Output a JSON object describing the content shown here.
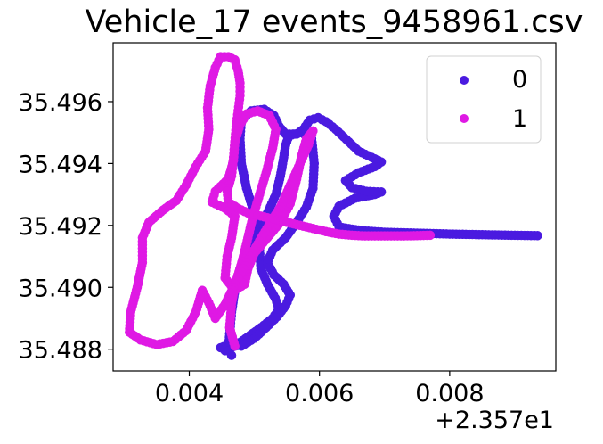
{
  "chart_data": {
    "type": "scatter",
    "title": "Vehicle_17 events_9458961.csv",
    "xlabel": "",
    "ylabel": "",
    "x_offset_label": "+2.357e1",
    "x_offset": 23.57,
    "xlim": [
      0.00283,
      0.00963
    ],
    "ylim": [
      35.4873,
      35.4979
    ],
    "x_ticks": [
      0.004,
      0.006,
      0.008
    ],
    "x_tick_labels": [
      "0.004",
      "0.006",
      "0.008"
    ],
    "y_ticks": [
      35.488,
      35.49,
      35.492,
      35.494,
      35.496
    ],
    "y_tick_labels": [
      "35.488",
      "35.490",
      "35.492",
      "35.494",
      "35.496"
    ],
    "grid": false,
    "legend": {
      "placement": "top-right",
      "entries": [
        {
          "label": "0",
          "color": "#4a1ae0"
        },
        {
          "label": "1",
          "color": "#df19e4"
        }
      ]
    },
    "series": [
      {
        "name": "0",
        "color": "#4a1ae0",
        "points": [
          [
            0.00935,
            35.49167
          ],
          [
            0.009,
            35.49168
          ],
          [
            0.0085,
            35.4917
          ],
          [
            0.008,
            35.49172
          ],
          [
            0.0075,
            35.49175
          ],
          [
            0.007,
            35.49178
          ],
          [
            0.0067,
            35.49182
          ],
          [
            0.0065,
            35.49188
          ],
          [
            0.0063,
            35.49195
          ],
          [
            0.00622,
            35.4923
          ],
          [
            0.0063,
            35.49262
          ],
          [
            0.00655,
            35.49288
          ],
          [
            0.00685,
            35.493
          ],
          [
            0.00695,
            35.49308
          ],
          [
            0.00672,
            35.4931
          ],
          [
            0.0065,
            35.49322
          ],
          [
            0.0064,
            35.49345
          ],
          [
            0.0066,
            35.4937
          ],
          [
            0.00685,
            35.4939
          ],
          [
            0.00695,
            35.49405
          ],
          [
            0.0068,
            35.4942
          ],
          [
            0.0066,
            35.4944
          ],
          [
            0.00645,
            35.4947
          ],
          [
            0.00625,
            35.4951
          ],
          [
            0.0061,
            35.49535
          ],
          [
            0.00598,
            35.49548
          ],
          [
            0.00585,
            35.4954
          ],
          [
            0.00575,
            35.4951
          ],
          [
            0.00565,
            35.49495
          ],
          [
            0.00548,
            35.49495
          ],
          [
            0.00538,
            35.4952
          ],
          [
            0.0053,
            35.49555
          ],
          [
            0.00515,
            35.49575
          ],
          [
            0.00495,
            35.4957
          ],
          [
            0.0048,
            35.4954
          ],
          [
            0.00478,
            35.4948
          ],
          [
            0.0048,
            35.494
          ],
          [
            0.00488,
            35.4932
          ],
          [
            0.00498,
            35.4925
          ],
          [
            0.00505,
            35.4918
          ],
          [
            0.00508,
            35.4912
          ],
          [
            0.0051,
            35.4906
          ],
          [
            0.0052,
            35.4901
          ],
          [
            0.00532,
            35.48965
          ],
          [
            0.00538,
            35.4893
          ],
          [
            0.00528,
            35.489
          ],
          [
            0.0051,
            35.4887
          ],
          [
            0.0049,
            35.4884
          ],
          [
            0.0047,
            35.4881
          ],
          [
            0.00455,
            35.48795
          ],
          [
            0.00448,
            35.48805
          ],
          [
            0.00462,
            35.48815
          ],
          [
            0.0048,
            35.4881
          ],
          [
            0.005,
            35.48835
          ],
          [
            0.00518,
            35.4887
          ],
          [
            0.00535,
            35.48905
          ],
          [
            0.00548,
            35.4894
          ],
          [
            0.00555,
            35.48975
          ],
          [
            0.00545,
            35.4901
          ],
          [
            0.0053,
            35.4904
          ],
          [
            0.0052,
            35.4908
          ],
          [
            0.00528,
            35.4912
          ],
          [
            0.00548,
            35.4916
          ],
          [
            0.00565,
            35.4921
          ],
          [
            0.0058,
            35.4926
          ],
          [
            0.0059,
            35.4932
          ],
          [
            0.00592,
            35.494
          ],
          [
            0.00588,
            35.4948
          ],
          [
            0.00572,
            35.495
          ],
          [
            0.00553,
            35.4949
          ],
          [
            0.00548,
            35.4946
          ],
          [
            0.00545,
            35.4942
          ],
          [
            0.0054,
            35.4936
          ],
          [
            0.00533,
            35.493
          ],
          [
            0.0052,
            35.4924
          ],
          [
            0.00505,
            35.4918
          ],
          [
            0.0049,
            35.4913
          ],
          [
            0.00478,
            35.4906
          ],
          [
            0.0047,
            35.4899
          ],
          [
            0.00465,
            35.4892
          ],
          [
            0.00462,
            35.4885
          ],
          [
            0.0046,
            35.48795
          ],
          [
            0.00465,
            35.4878
          ]
        ]
      },
      {
        "name": "1",
        "color": "#df19e4",
        "points": [
          [
            0.0047,
            35.4881
          ],
          [
            0.00462,
            35.4887
          ],
          [
            0.00465,
            35.4895
          ],
          [
            0.00472,
            35.4902
          ],
          [
            0.00482,
            35.4909
          ],
          [
            0.0049,
            35.4916
          ],
          [
            0.00498,
            35.4923
          ],
          [
            0.00508,
            35.493
          ],
          [
            0.00518,
            35.4937
          ],
          [
            0.00528,
            35.4945
          ],
          [
            0.00533,
            35.4951
          ],
          [
            0.00523,
            35.49555
          ],
          [
            0.00505,
            35.4957
          ],
          [
            0.00488,
            35.4956
          ],
          [
            0.00478,
            35.49525
          ],
          [
            0.0047,
            35.4947
          ],
          [
            0.00468,
            35.4941
          ],
          [
            0.0046,
            35.4935
          ],
          [
            0.0044,
            35.4931
          ],
          [
            0.00435,
            35.49275
          ],
          [
            0.00455,
            35.49255
          ],
          [
            0.0047,
            35.4923
          ],
          [
            0.00465,
            35.4916
          ],
          [
            0.00458,
            35.491
          ],
          [
            0.00455,
            35.4903
          ],
          [
            0.0047,
            35.4899
          ],
          [
            0.00485,
            35.4901
          ],
          [
            0.0049,
            35.4906
          ],
          [
            0.005,
            35.4911
          ],
          [
            0.0052,
            35.4916
          ],
          [
            0.0054,
            35.4921
          ],
          [
            0.00555,
            35.4927
          ],
          [
            0.00565,
            35.4935
          ],
          [
            0.00572,
            35.4942
          ],
          [
            0.0058,
            35.4948
          ],
          [
            0.0059,
            35.49505
          ],
          [
            0.00583,
            35.4946
          ],
          [
            0.0057,
            35.494
          ],
          [
            0.00555,
            35.4933
          ],
          [
            0.0054,
            35.4926
          ],
          [
            0.00522,
            35.492
          ],
          [
            0.00505,
            35.4914
          ],
          [
            0.00488,
            35.4908
          ],
          [
            0.0047,
            35.4901
          ],
          [
            0.00455,
            35.48945
          ],
          [
            0.0044,
            35.489
          ],
          [
            0.0043,
            35.4895
          ],
          [
            0.0042,
            35.4899
          ],
          [
            0.0041,
            35.4892
          ],
          [
            0.00395,
            35.4886
          ],
          [
            0.00375,
            35.48825
          ],
          [
            0.0035,
            35.48815
          ],
          [
            0.00325,
            35.4883
          ],
          [
            0.00308,
            35.48855
          ],
          [
            0.0031,
            35.4892
          ],
          [
            0.0032,
            35.49
          ],
          [
            0.00328,
            35.4908
          ],
          [
            0.00328,
            35.4916
          ],
          [
            0.00338,
            35.4921
          ],
          [
            0.0036,
            35.4925
          ],
          [
            0.0038,
            35.4928
          ],
          [
            0.00395,
            35.4933
          ],
          [
            0.0041,
            35.4939
          ],
          [
            0.00425,
            35.4944
          ],
          [
            0.0043,
            35.4951
          ],
          [
            0.00428,
            35.4958
          ],
          [
            0.00432,
            35.4965
          ],
          [
            0.0044,
            35.4971
          ],
          [
            0.00448,
            35.49745
          ],
          [
            0.0046,
            35.49745
          ],
          [
            0.0047,
            35.49735
          ],
          [
            0.00475,
            35.497
          ],
          [
            0.00478,
            35.4966
          ],
          [
            0.00478,
            35.4962
          ],
          [
            0.00475,
            35.4957
          ],
          [
            0.00472,
            35.4952
          ],
          [
            0.0047,
            35.4947
          ],
          [
            0.00468,
            35.4942
          ],
          [
            0.00465,
            35.4936
          ],
          [
            0.00458,
            35.4931
          ],
          [
            0.0046,
            35.49275
          ],
          [
            0.00475,
            35.49255
          ],
          [
            0.0049,
            35.4924
          ],
          [
            0.0051,
            35.4923
          ],
          [
            0.0053,
            35.4922
          ],
          [
            0.0055,
            35.4921
          ],
          [
            0.0057,
            35.492
          ],
          [
            0.0059,
            35.4919
          ],
          [
            0.0061,
            35.4918
          ],
          [
            0.0063,
            35.49172
          ],
          [
            0.0065,
            35.49168
          ],
          [
            0.0067,
            35.49166
          ],
          [
            0.0069,
            35.49166
          ],
          [
            0.0071,
            35.49166
          ],
          [
            0.0073,
            35.49166
          ],
          [
            0.0075,
            35.49167
          ],
          [
            0.0077,
            35.49168
          ]
        ]
      }
    ]
  }
}
